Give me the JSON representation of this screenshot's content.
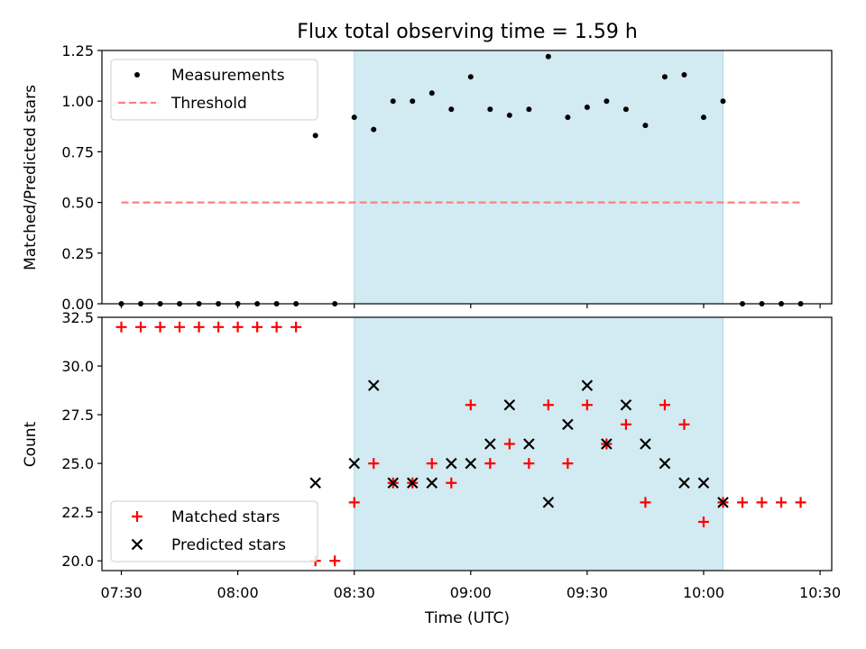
{
  "chart_data": [
    {
      "type": "scatter",
      "title": "Flux total observing time = 1.59 h",
      "xlabel": "",
      "ylabel": "Matched/Predicted stars",
      "xlim": [
        "07:25",
        "10:33"
      ],
      "ylim": [
        0,
        1.25
      ],
      "yticks": [
        "0.00",
        "0.25",
        "0.50",
        "0.75",
        "1.00",
        "1.25"
      ],
      "shaded_region": {
        "x_start": "08:30",
        "x_end": "10:05",
        "color": "#add8e6"
      },
      "legend_position": "upper left",
      "legend": [
        "Measurements",
        "Threshold"
      ],
      "series": [
        {
          "name": "Measurements",
          "marker": "dot",
          "color": "#000000",
          "points": [
            [
              "07:30",
              0
            ],
            [
              "07:35",
              0
            ],
            [
              "07:40",
              0
            ],
            [
              "07:45",
              0
            ],
            [
              "07:50",
              0
            ],
            [
              "07:55",
              0
            ],
            [
              "08:00",
              0
            ],
            [
              "08:05",
              0
            ],
            [
              "08:10",
              0
            ],
            [
              "08:15",
              0
            ],
            [
              "08:20",
              0.83
            ],
            [
              "08:25",
              0
            ],
            [
              "08:30",
              0.92
            ],
            [
              "08:35",
              0.86
            ],
            [
              "08:40",
              1.0
            ],
            [
              "08:45",
              1.0
            ],
            [
              "08:50",
              1.04
            ],
            [
              "08:55",
              0.96
            ],
            [
              "09:00",
              1.12
            ],
            [
              "09:05",
              0.96
            ],
            [
              "09:10",
              0.93
            ],
            [
              "09:15",
              0.96
            ],
            [
              "09:20",
              1.22
            ],
            [
              "09:25",
              0.92
            ],
            [
              "09:30",
              0.97
            ],
            [
              "09:35",
              1.0
            ],
            [
              "09:40",
              0.96
            ],
            [
              "09:45",
              0.88
            ],
            [
              "09:50",
              1.12
            ],
            [
              "09:55",
              1.13
            ],
            [
              "10:00",
              0.92
            ],
            [
              "10:05",
              1.0
            ],
            [
              "10:10",
              0
            ],
            [
              "10:15",
              0
            ],
            [
              "10:20",
              0
            ],
            [
              "10:25",
              0
            ]
          ]
        },
        {
          "name": "Threshold",
          "style": "dashed",
          "color": "#ff7f7f",
          "points": [
            [
              "07:30",
              0.5
            ],
            [
              "10:25",
              0.5
            ]
          ]
        }
      ]
    },
    {
      "type": "scatter",
      "title": "",
      "xlabel": "Time (UTC)",
      "ylabel": "Count",
      "xlim": [
        "07:25",
        "10:33"
      ],
      "ylim": [
        19.5,
        32.5
      ],
      "yticks": [
        "20.0",
        "22.5",
        "25.0",
        "27.5",
        "30.0",
        "32.5"
      ],
      "xticks": [
        "07:30",
        "08:00",
        "08:30",
        "09:00",
        "09:30",
        "10:00",
        "10:30"
      ],
      "shaded_region": {
        "x_start": "08:30",
        "x_end": "10:05",
        "color": "#add8e6"
      },
      "legend_position": "lower left",
      "legend": [
        "Matched stars",
        "Predicted stars"
      ],
      "series": [
        {
          "name": "Matched stars",
          "marker": "plus",
          "color": "#ff0000",
          "points": [
            [
              "07:30",
              32
            ],
            [
              "07:35",
              32
            ],
            [
              "07:40",
              32
            ],
            [
              "07:45",
              32
            ],
            [
              "07:50",
              32
            ],
            [
              "07:55",
              32
            ],
            [
              "08:00",
              32
            ],
            [
              "08:05",
              32
            ],
            [
              "08:10",
              32
            ],
            [
              "08:15",
              32
            ],
            [
              "08:20",
              20
            ],
            [
              "08:25",
              20
            ],
            [
              "08:30",
              23
            ],
            [
              "08:35",
              25
            ],
            [
              "08:40",
              24
            ],
            [
              "08:45",
              24
            ],
            [
              "08:50",
              25
            ],
            [
              "08:55",
              24
            ],
            [
              "09:00",
              28
            ],
            [
              "09:05",
              25
            ],
            [
              "09:10",
              26
            ],
            [
              "09:15",
              25
            ],
            [
              "09:20",
              28
            ],
            [
              "09:25",
              25
            ],
            [
              "09:30",
              28
            ],
            [
              "09:35",
              26
            ],
            [
              "09:40",
              27
            ],
            [
              "09:45",
              23
            ],
            [
              "09:50",
              28
            ],
            [
              "09:55",
              27
            ],
            [
              "10:00",
              22
            ],
            [
              "10:05",
              23
            ],
            [
              "10:10",
              23
            ],
            [
              "10:15",
              23
            ],
            [
              "10:20",
              23
            ],
            [
              "10:25",
              23
            ]
          ]
        },
        {
          "name": "Predicted stars",
          "marker": "x",
          "color": "#000000",
          "points": [
            [
              "08:20",
              24
            ],
            [
              "08:30",
              25
            ],
            [
              "08:35",
              29
            ],
            [
              "08:40",
              24
            ],
            [
              "08:45",
              24
            ],
            [
              "08:50",
              24
            ],
            [
              "08:55",
              25
            ],
            [
              "09:00",
              25
            ],
            [
              "09:05",
              26
            ],
            [
              "09:10",
              28
            ],
            [
              "09:15",
              26
            ],
            [
              "09:20",
              23
            ],
            [
              "09:25",
              27
            ],
            [
              "09:30",
              29
            ],
            [
              "09:35",
              26
            ],
            [
              "09:40",
              28
            ],
            [
              "09:45",
              26
            ],
            [
              "09:50",
              25
            ],
            [
              "09:55",
              24
            ],
            [
              "10:00",
              24
            ],
            [
              "10:05",
              23
            ]
          ]
        }
      ]
    }
  ]
}
